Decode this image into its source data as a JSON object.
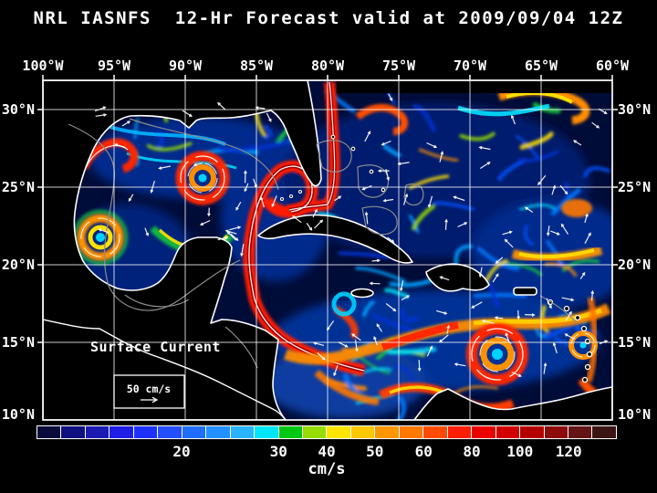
{
  "title": "NRL IASNFS  12-Hr Forecast valid at 2009/09/04 12Z",
  "axes": {
    "lon_labels": [
      "100°W",
      "95°W",
      "90°W",
      "85°W",
      "80°W",
      "75°W",
      "70°W",
      "65°W",
      "60°W"
    ],
    "lat_labels": [
      "30°N",
      "25°N",
      "20°N",
      "15°N",
      "10°N"
    ]
  },
  "legend": {
    "title": "Surface Current",
    "scale_value": "50 cm/s"
  },
  "colorbar": {
    "units": "cm/s",
    "tick_labels": [
      "20",
      "30",
      "40",
      "50",
      "60",
      "80",
      "100",
      "120"
    ],
    "tick_positions_pct": [
      25,
      41.7,
      50,
      58.3,
      66.7,
      75,
      83.3,
      91.7
    ],
    "cell_colors": [
      "#0a0a3c",
      "#0f0f82",
      "#1c1cb4",
      "#1e1ee6",
      "#1e32ff",
      "#2350ff",
      "#1e6eff",
      "#2390ff",
      "#28b4ff",
      "#00e6ff",
      "#00c814",
      "#96dc00",
      "#ffe600",
      "#ffc800",
      "#ff9600",
      "#ff7800",
      "#ff4b00",
      "#ff1e00",
      "#eb0000",
      "#d20000",
      "#b40000",
      "#8c0a0a",
      "#641414",
      "#3c1414"
    ]
  },
  "colors": {
    "background": "#000000",
    "ocean_base": "#000c38",
    "grid": "#ffffff",
    "coastline": "#ffffff",
    "shelf_contour": "#8c8c8c",
    "text": "#ffffff"
  }
}
